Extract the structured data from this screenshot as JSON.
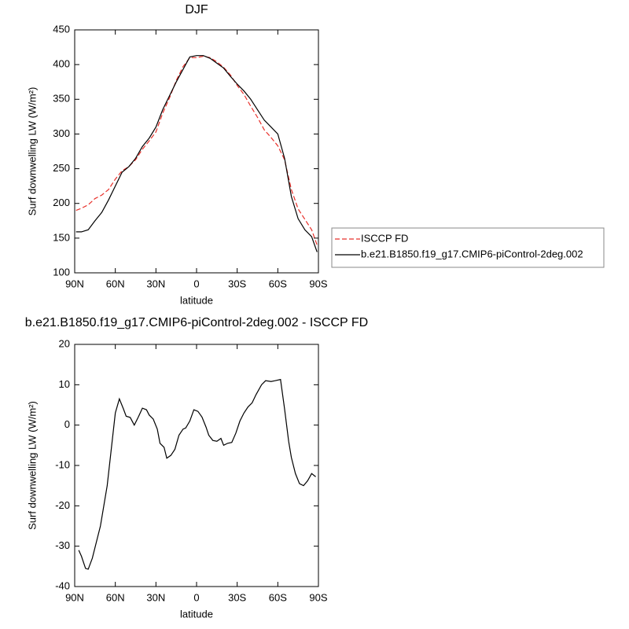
{
  "chart_data": [
    {
      "type": "line",
      "title": "DJF",
      "xlabel": "latitude",
      "ylabel": "Surf downwelling LW (W/m²)",
      "x": [
        89,
        85,
        80,
        75,
        70,
        65,
        60,
        55,
        50,
        45,
        40,
        35,
        30,
        25,
        20,
        15,
        10,
        5,
        0,
        -5,
        -10,
        -15,
        -20,
        -25,
        -30,
        -35,
        -40,
        -45,
        -50,
        -55,
        -60,
        -65,
        -70,
        -75,
        -80,
        -85,
        -89
      ],
      "xlim": [
        90,
        -90
      ],
      "xticks": [
        {
          "value": 90,
          "label": "90N"
        },
        {
          "value": 60,
          "label": "60N"
        },
        {
          "value": 30,
          "label": "30N"
        },
        0,
        {
          "value": -30,
          "label": "30S"
        },
        {
          "value": -60,
          "label": "60S"
        },
        {
          "value": -90,
          "label": "90S"
        }
      ],
      "ylim": [
        100,
        450
      ],
      "yticks": [
        100,
        150,
        200,
        250,
        300,
        350,
        400,
        450
      ],
      "legend": "right",
      "series": [
        {
          "name": "ISCCP FD",
          "color": "#e8302a",
          "linestyle": "dashed",
          "values": [
            190,
            193,
            198,
            207,
            212,
            220,
            235,
            247,
            253,
            263,
            278,
            290,
            303,
            330,
            352,
            377,
            397,
            410,
            410,
            412,
            410,
            404,
            396,
            385,
            370,
            357,
            340,
            324,
            306,
            295,
            283,
            263,
            220,
            192,
            177,
            162,
            140
          ]
        },
        {
          "name": "b.e21.B1850.f19_g17.CMIP6-piControl-2deg.002",
          "color": "#000000",
          "linestyle": "solid",
          "values": [
            159,
            159,
            162,
            175,
            187,
            205,
            225,
            245,
            253,
            265,
            282,
            294,
            310,
            335,
            355,
            375,
            393,
            411,
            413,
            413,
            409,
            402,
            395,
            383,
            372,
            362,
            350,
            335,
            320,
            310,
            300,
            265,
            210,
            178,
            162,
            152,
            130
          ]
        }
      ]
    },
    {
      "type": "line",
      "title": "b.e21.B1850.f19_g17.CMIP6-piControl-2deg.002 - ISCCP FD",
      "xlabel": "latitude",
      "ylabel": "Surf downwelling LW (W/m²)",
      "x": [
        87,
        85,
        82,
        80,
        77,
        74,
        71,
        66,
        60,
        57,
        54,
        52,
        49,
        46,
        43,
        40,
        37,
        35,
        32,
        29,
        27,
        24,
        22,
        19,
        16,
        13,
        10,
        8,
        5,
        2,
        -1,
        -4,
        -7,
        -9,
        -12,
        -15,
        -18,
        -20,
        -23,
        -26,
        -29,
        -32,
        -35,
        -38,
        -41,
        -44,
        -48,
        -51,
        -55,
        -58,
        -62,
        -65,
        -68,
        -70,
        -73,
        -76,
        -79,
        -82,
        -85,
        -88
      ],
      "xlim": [
        90,
        -90
      ],
      "xticks": [
        {
          "value": 90,
          "label": "90N"
        },
        {
          "value": 60,
          "label": "60N"
        },
        {
          "value": 30,
          "label": "30N"
        },
        0,
        {
          "value": -30,
          "label": "30S"
        },
        {
          "value": -60,
          "label": "60S"
        },
        {
          "value": -90,
          "label": "90S"
        }
      ],
      "ylim": [
        -40,
        20
      ],
      "yticks": [
        -40,
        -30,
        -20,
        -10,
        0,
        10,
        20
      ],
      "series": [
        {
          "color": "#000000",
          "linestyle": "solid",
          "values": [
            -31,
            -32.5,
            -35.5,
            -35.7,
            -33,
            -29,
            -25,
            -15,
            3,
            6.5,
            4,
            2.2,
            1.9,
            0,
            2,
            4.2,
            3.8,
            2.5,
            1.5,
            -1,
            -4.5,
            -5.5,
            -8.2,
            -7.5,
            -6,
            -2.5,
            -1,
            -0.7,
            1,
            3.8,
            3.4,
            2,
            -0.5,
            -2.5,
            -3.8,
            -4,
            -3.3,
            -5,
            -4.5,
            -4.3,
            -2,
            1,
            3,
            4.5,
            5.5,
            7.6,
            10,
            11,
            10.8,
            11,
            11.3,
            4,
            -4,
            -8,
            -12,
            -14.5,
            -15,
            -13.8,
            -12,
            -12.8
          ]
        }
      ]
    }
  ]
}
